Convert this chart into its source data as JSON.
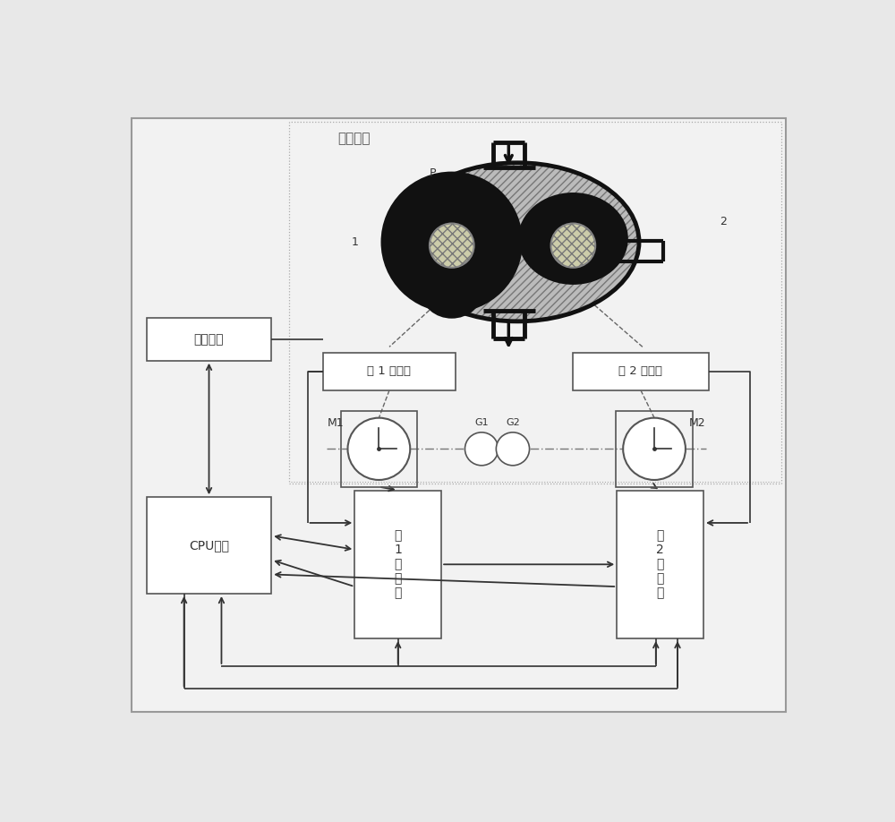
{
  "bg": "#e8e8e8",
  "lc": "#333333",
  "dc": "#666666",
  "bc": "#ffffff",
  "ec": "#555555",
  "tc": "#333333",
  "mech_label": "机械部分",
  "enc1_label": "第 1 编码器",
  "enc2_label": "第 2 编码器",
  "inv1_label": "第\n1\n变\n频\n器",
  "inv2_label": "第\n2\n变\n频\n器",
  "cpu_label": "CPU单元",
  "hmi_label": "人机界面",
  "m1": "M1",
  "m2": "M2",
  "g1": "G1",
  "g2": "G2",
  "p_lbl": "P",
  "n1": "1",
  "n2": "2",
  "pump_fill": "#cccccc",
  "pump_edge": "#111111",
  "rotor_fill": "#111111",
  "shaft_fill": "#aaaaaa"
}
